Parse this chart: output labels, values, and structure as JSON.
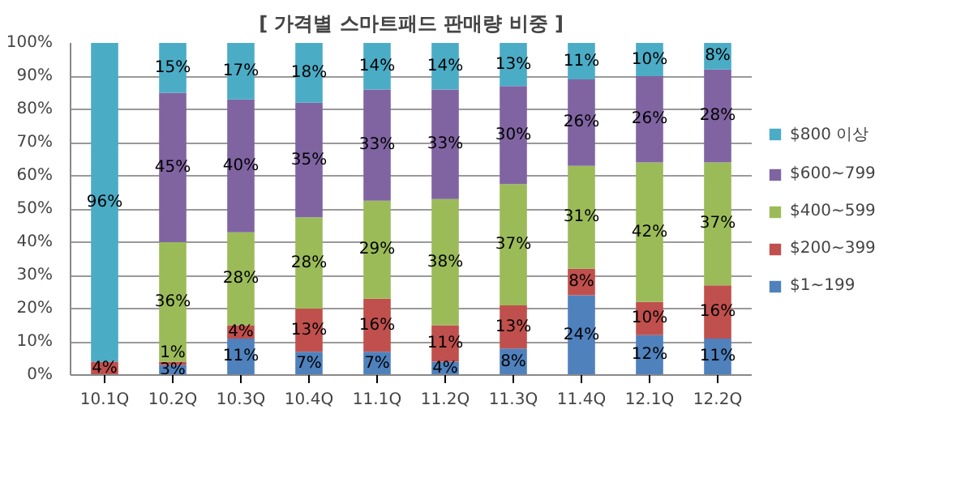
{
  "chart_data": {
    "type": "bar",
    "title": "[ 가격별 스마트패드 판매량 비중 ]",
    "stacked": true,
    "categories": [
      "10.1Q",
      "10.2Q",
      "10.3Q",
      "10.4Q",
      "11.1Q",
      "11.2Q",
      "11.3Q",
      "11.4Q",
      "12.1Q",
      "12.2Q"
    ],
    "series": [
      {
        "name": "$1~199",
        "color": "#4f81bd",
        "values": [
          0,
          3,
          11,
          7,
          7,
          4,
          8,
          24,
          12,
          11
        ],
        "value_labels": [
          null,
          "3%",
          "11%",
          "7%",
          "7%",
          "4%",
          "8%",
          "24%",
          "12%",
          "11%"
        ]
      },
      {
        "name": "$200~399",
        "color": "#c0504d",
        "values": [
          4,
          1,
          4,
          13,
          16,
          11,
          13,
          8,
          10,
          16
        ],
        "value_labels": [
          "4%",
          "1%",
          "4%",
          "13%",
          "16%",
          "11%",
          "13%",
          "8%",
          "10%",
          "16%"
        ]
      },
      {
        "name": "$400~599",
        "color": "#9bbb59",
        "values": [
          0,
          36,
          28,
          27.5,
          29.5,
          38,
          36.5,
          31,
          42,
          37
        ],
        "value_labels": [
          null,
          "36%",
          "28%",
          "28%",
          "29%",
          "38%",
          "37%",
          "31%",
          "42%",
          "37%"
        ]
      },
      {
        "name": "$600~799",
        "color": "#8064a2",
        "values": [
          0,
          45,
          40,
          34.5,
          33.5,
          33,
          29.5,
          26,
          26,
          28
        ],
        "value_labels": [
          null,
          "45%",
          "40%",
          "35%",
          "33%",
          "33%",
          "30%",
          "26%",
          "26%",
          "28%"
        ]
      },
      {
        "name": "$800 이상",
        "color": "#4bacc6",
        "values": [
          96,
          15,
          17,
          18,
          14,
          14,
          13,
          11,
          10,
          8
        ],
        "value_labels": [
          "96%",
          "15%",
          "17%",
          "18%",
          "14%",
          "14%",
          "13%",
          "11%",
          "10%",
          "8%"
        ]
      }
    ],
    "ylim": [
      0,
      100
    ],
    "yticks": [
      {
        "value": 0,
        "label": "0%"
      },
      {
        "value": 10,
        "label": "10%"
      },
      {
        "value": 20,
        "label": "20%"
      },
      {
        "value": 30,
        "label": "30%"
      },
      {
        "value": 40,
        "label": "40%"
      },
      {
        "value": 50,
        "label": "50%"
      },
      {
        "value": 60,
        "label": "60%"
      },
      {
        "value": 70,
        "label": "70%"
      },
      {
        "value": 80,
        "label": "80%"
      },
      {
        "value": 90,
        "label": "90%"
      },
      {
        "value": 100,
        "label": "100%"
      }
    ],
    "grid": "y",
    "legend": "right"
  }
}
